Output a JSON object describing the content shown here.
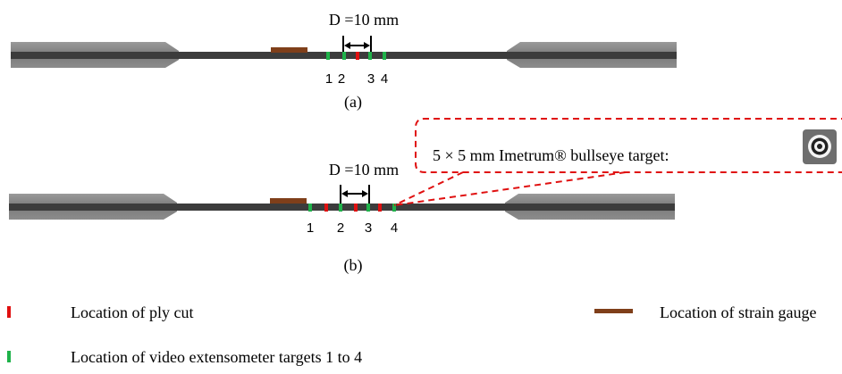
{
  "panels": [
    {
      "dimension": "D =10 mm",
      "target_labels": [
        "1",
        "2",
        "3",
        "4"
      ],
      "caption": "(a)"
    },
    {
      "dimension": "D =10 mm",
      "target_labels": [
        "1",
        "2",
        "3",
        "4"
      ],
      "caption": "(b)",
      "callout": "5 × 5 mm Imetrum® bullseye target:"
    }
  ],
  "legend": [
    {
      "label": "Location of ply cut"
    },
    {
      "label": "Location of strain gauge"
    },
    {
      "label": "Location of video extensometer targets 1 to 4"
    }
  ]
}
